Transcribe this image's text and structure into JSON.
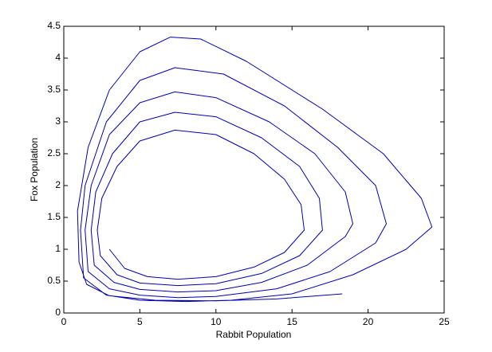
{
  "chart_data": {
    "type": "line",
    "xlabel": "Rabbit Population",
    "ylabel": "Fox Population",
    "xlim": [
      0,
      25
    ],
    "ylim": [
      0,
      4.5
    ],
    "xticks": [
      0,
      5,
      10,
      15,
      20,
      25
    ],
    "yticks": [
      0,
      0.5,
      1,
      1.5,
      2,
      2.5,
      3,
      3.5,
      4,
      4.5
    ],
    "series": [
      {
        "color": "#0000b0",
        "x": [
          3,
          4,
          5.5,
          7.5,
          10,
          12.5,
          14.5,
          15.8,
          15.6,
          14.5,
          12.5,
          10,
          7.3,
          5,
          3.5,
          2.5,
          2.2,
          2.4,
          3.5,
          5,
          7.5,
          10,
          13,
          15.5,
          17,
          16.8,
          15.5,
          13,
          10,
          7.3,
          5,
          3.2,
          2.1,
          1.8,
          2,
          3.3,
          5,
          7.5,
          10,
          13,
          16,
          18.5,
          19,
          18.5,
          16.5,
          13.5,
          10,
          7.3,
          5,
          3,
          1.8,
          1.4,
          1.6,
          3,
          5,
          7.5,
          10,
          14,
          17.5,
          20.5,
          21.2,
          20.5,
          18,
          14.5,
          10.5,
          7.3,
          5,
          2.8,
          1.4,
          1.1,
          1.3,
          2.8,
          5,
          8,
          11,
          15,
          19,
          22.5,
          24.2,
          23.5,
          21,
          17,
          12,
          9,
          7,
          5,
          3,
          1.6,
          0.9,
          1,
          1.5,
          3,
          6,
          10,
          14,
          18.3
        ],
        "y": [
          1,
          0.7,
          0.57,
          0.53,
          0.57,
          0.72,
          0.95,
          1.3,
          1.7,
          2.1,
          2.5,
          2.8,
          2.87,
          2.7,
          2.3,
          1.8,
          1.3,
          0.9,
          0.6,
          0.47,
          0.43,
          0.46,
          0.62,
          0.9,
          1.3,
          1.8,
          2.3,
          2.75,
          3.08,
          3.15,
          3,
          2.5,
          1.9,
          1.3,
          0.75,
          0.48,
          0.37,
          0.33,
          0.35,
          0.48,
          0.75,
          1.2,
          1.4,
          1.9,
          2.5,
          3,
          3.38,
          3.47,
          3.3,
          2.8,
          2,
          1.3,
          0.65,
          0.38,
          0.28,
          0.24,
          0.26,
          0.38,
          0.65,
          1.1,
          1.4,
          2,
          2.6,
          3.25,
          3.75,
          3.85,
          3.65,
          3,
          2,
          1.3,
          0.55,
          0.28,
          0.2,
          0.18,
          0.2,
          0.3,
          0.6,
          1,
          1.35,
          1.8,
          2.5,
          3.2,
          3.95,
          4.3,
          4.33,
          4.1,
          3.5,
          2.6,
          1.6,
          0.8,
          0.45,
          0.27,
          0.2,
          0.19,
          0.22,
          0.3
        ]
      }
    ]
  }
}
